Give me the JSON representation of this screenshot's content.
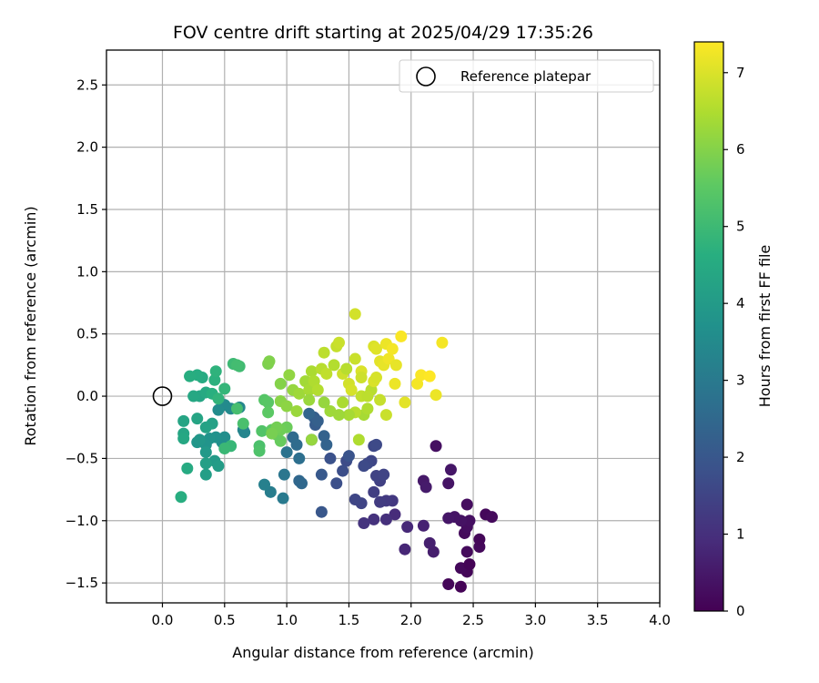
{
  "chart_data": {
    "type": "scatter",
    "title": "FOV centre drift starting at 2025/04/29 17:35:26",
    "xlabel": "Angular distance from reference (arcmin)",
    "ylabel": "Rotation from reference (arcmin)",
    "xlim": [
      -0.45,
      4.0
    ],
    "ylim": [
      -1.66,
      2.78
    ],
    "xticks": [
      "0.0",
      "0.5",
      "1.0",
      "1.5",
      "2.0",
      "2.5",
      "3.0",
      "3.5",
      "4.0"
    ],
    "yticks": [
      "−1.5",
      "−1.0",
      "−0.5",
      "0.0",
      "0.5",
      "1.0",
      "1.5",
      "2.0",
      "2.5"
    ],
    "grid": true,
    "legend": {
      "label": "Reference platepar",
      "placement": "top-right",
      "marker": "open-circle"
    },
    "reference_point": {
      "x": 0.0,
      "y": 0.0
    },
    "colorbar": {
      "label": "Hours from first FF file",
      "colormap": "viridis",
      "range": [
        0,
        7.4
      ],
      "ticks": [
        "0",
        "1",
        "2",
        "3",
        "4",
        "5",
        "6",
        "7"
      ]
    },
    "points": [
      [
        2.4,
        -1.53,
        0.05
      ],
      [
        2.3,
        -1.51,
        0.1
      ],
      [
        2.45,
        -1.41,
        0.1
      ],
      [
        2.4,
        -1.38,
        0.15
      ],
      [
        2.47,
        -1.35,
        0.05
      ],
      [
        2.45,
        -1.25,
        0.2
      ],
      [
        2.55,
        -1.21,
        0.15
      ],
      [
        2.55,
        -1.15,
        0.1
      ],
      [
        2.43,
        -1.1,
        0.2
      ],
      [
        2.45,
        -1.05,
        0.25
      ],
      [
        2.47,
        -1.0,
        0.3
      ],
      [
        2.4,
        -1.0,
        0.35
      ],
      [
        2.6,
        -0.95,
        0.15
      ],
      [
        2.65,
        -0.97,
        0.2
      ],
      [
        2.45,
        -0.87,
        0.25
      ],
      [
        2.35,
        -0.97,
        0.4
      ],
      [
        2.3,
        -0.98,
        0.45
      ],
      [
        2.18,
        -1.25,
        0.6
      ],
      [
        2.15,
        -1.18,
        0.65
      ],
      [
        2.1,
        -1.04,
        0.7
      ],
      [
        1.95,
        -1.23,
        0.8
      ],
      [
        1.97,
        -1.05,
        0.85
      ],
      [
        1.87,
        -0.95,
        0.9
      ],
      [
        1.8,
        -0.99,
        1.0
      ],
      [
        1.7,
        -0.99,
        1.05
      ],
      [
        1.62,
        -1.02,
        1.1
      ],
      [
        2.1,
        -0.68,
        0.5
      ],
      [
        2.12,
        -0.73,
        0.55
      ],
      [
        2.3,
        -0.7,
        0.4
      ],
      [
        2.32,
        -0.59,
        0.45
      ],
      [
        2.2,
        -0.4,
        0.3
      ],
      [
        1.85,
        -0.84,
        1.2
      ],
      [
        1.8,
        -0.84,
        1.25
      ],
      [
        1.75,
        -0.85,
        1.3
      ],
      [
        1.7,
        -0.77,
        1.35
      ],
      [
        1.75,
        -0.68,
        1.4
      ],
      [
        1.72,
        -0.64,
        1.45
      ],
      [
        1.78,
        -0.63,
        1.5
      ],
      [
        1.68,
        -0.52,
        1.55
      ],
      [
        1.65,
        -0.54,
        1.6
      ],
      [
        1.62,
        -0.56,
        1.65
      ],
      [
        1.6,
        -0.86,
        1.5
      ],
      [
        1.55,
        -0.83,
        1.55
      ],
      [
        1.7,
        -0.4,
        1.6
      ],
      [
        1.72,
        -0.39,
        1.65
      ],
      [
        1.48,
        -0.52,
        1.7
      ],
      [
        1.45,
        -0.6,
        1.75
      ],
      [
        1.4,
        -0.7,
        1.8
      ],
      [
        1.35,
        -0.5,
        1.85
      ],
      [
        1.5,
        -0.48,
        1.9
      ],
      [
        1.28,
        -0.93,
        2.0
      ],
      [
        1.28,
        -0.63,
        2.05
      ],
      [
        1.2,
        -0.35,
        2.1
      ],
      [
        1.23,
        -0.23,
        2.15
      ],
      [
        1.22,
        -0.17,
        2.2
      ],
      [
        1.25,
        -0.2,
        2.25
      ],
      [
        1.3,
        -0.32,
        2.3
      ],
      [
        1.32,
        -0.39,
        2.35
      ],
      [
        1.18,
        -0.14,
        2.4
      ],
      [
        1.1,
        -0.68,
        2.45
      ],
      [
        1.12,
        -0.7,
        2.5
      ],
      [
        1.05,
        -0.33,
        2.55
      ],
      [
        1.08,
        -0.39,
        2.6
      ],
      [
        1.1,
        -0.5,
        2.7
      ],
      [
        1.0,
        -0.45,
        2.8
      ],
      [
        0.98,
        -0.63,
        2.9
      ],
      [
        0.97,
        -0.82,
        3.0
      ],
      [
        0.87,
        -0.77,
        3.1
      ],
      [
        0.82,
        -0.71,
        3.2
      ],
      [
        0.65,
        -0.27,
        3.3
      ],
      [
        0.66,
        -0.29,
        3.35
      ],
      [
        0.62,
        -0.09,
        3.4
      ],
      [
        0.55,
        -0.1,
        3.45
      ],
      [
        0.5,
        -0.07,
        3.5
      ],
      [
        0.45,
        -0.11,
        3.55
      ],
      [
        0.5,
        -0.33,
        3.6
      ],
      [
        0.48,
        -0.37,
        3.65
      ],
      [
        0.43,
        -0.33,
        3.7
      ],
      [
        0.38,
        -0.34,
        3.75
      ],
      [
        0.35,
        -0.39,
        3.8
      ],
      [
        0.28,
        -0.37,
        3.85
      ],
      [
        0.3,
        -0.35,
        3.9
      ],
      [
        0.35,
        -0.45,
        3.95
      ],
      [
        0.42,
        -0.52,
        4.0
      ],
      [
        0.45,
        -0.56,
        4.05
      ],
      [
        0.35,
        -0.63,
        4.1
      ],
      [
        0.35,
        -0.54,
        4.15
      ],
      [
        0.4,
        -0.22,
        4.2
      ],
      [
        0.35,
        -0.25,
        4.25
      ],
      [
        0.28,
        -0.18,
        4.3
      ],
      [
        0.3,
        0.0,
        4.35
      ],
      [
        0.25,
        0.0,
        4.4
      ],
      [
        0.35,
        0.03,
        4.45
      ],
      [
        0.32,
        0.15,
        4.5
      ],
      [
        0.28,
        0.17,
        4.55
      ],
      [
        0.22,
        0.16,
        4.6
      ],
      [
        0.4,
        0.02,
        4.65
      ],
      [
        0.42,
        0.13,
        4.7
      ],
      [
        0.43,
        0.2,
        4.75
      ],
      [
        0.45,
        -0.02,
        4.8
      ],
      [
        0.5,
        0.06,
        4.85
      ],
      [
        0.55,
        -0.4,
        4.9
      ],
      [
        0.5,
        -0.42,
        4.95
      ],
      [
        0.17,
        -0.2,
        4.3
      ],
      [
        0.17,
        -0.3,
        4.35
      ],
      [
        0.17,
        -0.34,
        4.4
      ],
      [
        0.2,
        -0.58,
        4.5
      ],
      [
        0.15,
        -0.81,
        4.6
      ],
      [
        0.57,
        0.26,
        5.0
      ],
      [
        0.62,
        0.24,
        5.05
      ],
      [
        0.6,
        0.25,
        5.1
      ],
      [
        0.6,
        -0.1,
        5.15
      ],
      [
        0.65,
        -0.22,
        5.2
      ],
      [
        0.78,
        -0.4,
        5.25
      ],
      [
        0.78,
        -0.44,
        5.3
      ],
      [
        0.8,
        -0.28,
        5.35
      ],
      [
        0.82,
        -0.03,
        5.4
      ],
      [
        0.85,
        -0.05,
        5.45
      ],
      [
        0.85,
        -0.13,
        5.5
      ],
      [
        0.88,
        -0.27,
        5.55
      ],
      [
        0.92,
        -0.31,
        5.6
      ],
      [
        0.95,
        -0.36,
        5.65
      ],
      [
        1.0,
        -0.25,
        5.7
      ],
      [
        0.95,
        -0.27,
        5.75
      ],
      [
        0.92,
        -0.25,
        5.8
      ],
      [
        0.88,
        -0.3,
        5.85
      ],
      [
        0.85,
        0.26,
        5.9
      ],
      [
        0.86,
        0.28,
        5.95
      ],
      [
        0.95,
        0.1,
        6.0
      ],
      [
        0.95,
        -0.04,
        6.05
      ],
      [
        1.0,
        -0.08,
        6.1
      ],
      [
        1.02,
        0.17,
        6.15
      ],
      [
        1.05,
        0.05,
        6.2
      ],
      [
        1.08,
        -0.12,
        6.25
      ],
      [
        1.1,
        0.02,
        6.3
      ],
      [
        1.15,
        0.12,
        6.35
      ],
      [
        1.18,
        0.05,
        6.4
      ],
      [
        1.2,
        0.2,
        6.45
      ],
      [
        1.22,
        0.12,
        6.5
      ],
      [
        1.25,
        0.05,
        6.55
      ],
      [
        1.28,
        0.22,
        6.6
      ],
      [
        1.3,
        0.35,
        6.65
      ],
      [
        1.32,
        0.18,
        6.7
      ],
      [
        1.35,
        -0.12,
        6.3
      ],
      [
        1.2,
        -0.35,
        6.2
      ],
      [
        1.4,
        0.4,
        6.75
      ],
      [
        1.42,
        0.43,
        6.8
      ],
      [
        1.45,
        0.18,
        6.85
      ],
      [
        1.5,
        0.1,
        6.9
      ],
      [
        1.52,
        0.05,
        6.95
      ],
      [
        1.55,
        0.66,
        6.9
      ],
      [
        1.55,
        0.3,
        6.8
      ],
      [
        1.58,
        -0.35,
        6.5
      ],
      [
        1.6,
        0.2,
        7.0
      ],
      [
        1.62,
        -0.15,
        6.4
      ],
      [
        1.65,
        -0.1,
        6.5
      ],
      [
        1.68,
        0.05,
        6.6
      ],
      [
        1.7,
        0.4,
        7.0
      ],
      [
        1.72,
        0.38,
        7.05
      ],
      [
        1.75,
        0.28,
        7.1
      ],
      [
        1.7,
        0.12,
        7.0
      ],
      [
        1.78,
        0.25,
        7.15
      ],
      [
        1.8,
        0.42,
        7.2
      ],
      [
        1.82,
        0.3,
        7.25
      ],
      [
        1.85,
        0.38,
        7.3
      ],
      [
        1.87,
        0.1,
        7.2
      ],
      [
        1.88,
        0.25,
        7.15
      ],
      [
        1.92,
        0.48,
        7.35
      ],
      [
        1.95,
        -0.05,
        7.1
      ],
      [
        2.05,
        0.1,
        7.3
      ],
      [
        2.08,
        0.17,
        7.35
      ],
      [
        2.15,
        0.16,
        7.4
      ],
      [
        2.2,
        0.01,
        7.2
      ],
      [
        2.25,
        0.43,
        7.3
      ],
      [
        1.6,
        0.0,
        6.7
      ],
      [
        1.48,
        0.22,
        6.6
      ],
      [
        1.38,
        0.25,
        6.55
      ],
      [
        1.45,
        -0.05,
        6.45
      ],
      [
        1.65,
        0.0,
        6.65
      ],
      [
        1.75,
        -0.03,
        6.75
      ],
      [
        1.8,
        -0.15,
        6.8
      ],
      [
        1.55,
        -0.13,
        6.6
      ],
      [
        1.5,
        -0.15,
        6.4
      ],
      [
        1.42,
        -0.15,
        6.3
      ],
      [
        1.3,
        -0.05,
        6.2
      ],
      [
        1.18,
        -0.03,
        6.25
      ],
      [
        1.6,
        0.15,
        6.85
      ],
      [
        1.72,
        0.15,
        6.95
      ]
    ]
  }
}
